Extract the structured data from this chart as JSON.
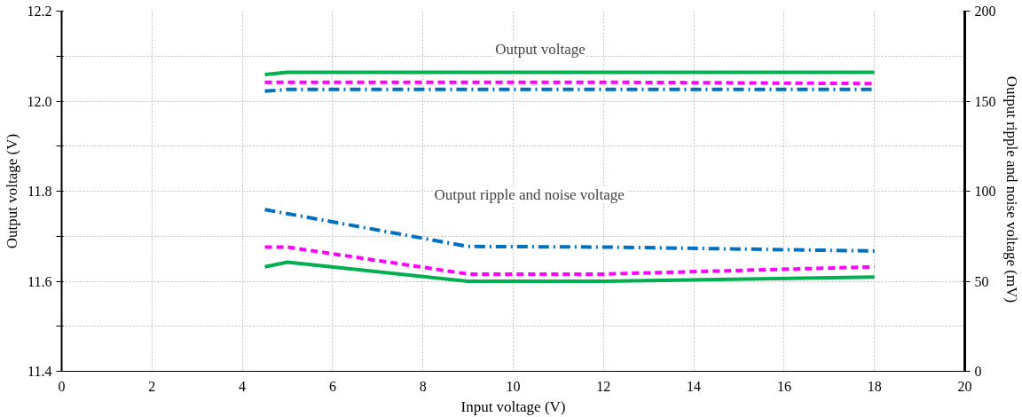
{
  "chart_data": {
    "type": "line",
    "xlabel": "Input voltage (V)",
    "ylabel": "Output voltage (V)",
    "y2label": "Output ripple  and noise voltage (mV)",
    "xlim": [
      0,
      20
    ],
    "xticks": [
      0,
      2,
      4,
      6,
      8,
      10,
      12,
      14,
      16,
      18,
      20
    ],
    "ylim": [
      11.4,
      12.2
    ],
    "yticks": [
      11.4,
      {
        "value": 11.5,
        "label": null
      },
      11.6,
      {
        "value": 11.7,
        "label": null
      },
      11.8,
      {
        "value": 11.9,
        "label": null
      },
      {
        "value": 12.0,
        "label": "12.0"
      },
      {
        "value": 12.1,
        "label": null
      },
      12.2
    ],
    "y2lim": [
      0,
      200
    ],
    "y2ticks": [
      0,
      50,
      100,
      150,
      200
    ],
    "grid": true,
    "marker": "none",
    "series": [
      {
        "color": "#00b050",
        "line_style": "solid",
        "x": [
          4.5,
          5,
          18
        ],
        "values": [
          12.059,
          12.064,
          12.064
        ]
      },
      {
        "color": "#ff00ff",
        "line_style": "dashed",
        "x": [
          4.5,
          5,
          12,
          18
        ],
        "values": [
          12.042,
          12.042,
          12.042,
          12.039
        ]
      },
      {
        "color": "#0070c0",
        "line_style": "dashdot",
        "x": [
          4.5,
          5,
          18
        ],
        "values": [
          12.022,
          12.026,
          12.026
        ]
      },
      {
        "color": "#00b050",
        "line_style": "solid",
        "axis": "y2",
        "x": [
          4.5,
          5,
          9,
          12,
          18
        ],
        "values": [
          58,
          60.6,
          50,
          50,
          52.4
        ]
      },
      {
        "color": "#ff00ff",
        "line_style": "dashed",
        "axis": "y2",
        "x": [
          4.5,
          5,
          9,
          12,
          18
        ],
        "values": [
          69,
          69,
          54,
          54,
          58
        ]
      },
      {
        "color": "#0070c0",
        "line_style": "dashdot",
        "axis": "y2",
        "x": [
          4.5,
          9,
          12,
          18
        ],
        "values": [
          89.8,
          69.3,
          69,
          66.8
        ]
      }
    ],
    "annotations": [
      "Output voltage",
      "Output ripple  and noise voltage"
    ]
  }
}
